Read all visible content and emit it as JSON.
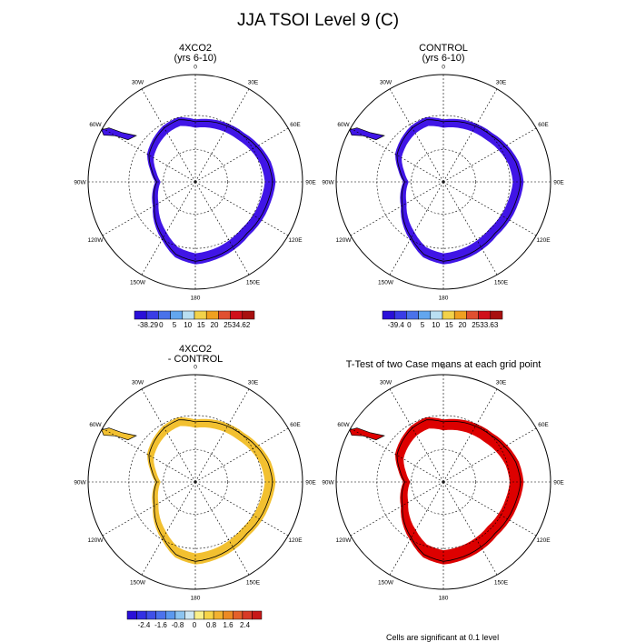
{
  "title": "JJA TSOI Level 9 (C)",
  "colors": {
    "frame": "#000000",
    "grid": "#000000",
    "coast": "#000000",
    "signif": "#dd0000"
  },
  "common": {
    "lon_labels": [
      "0",
      "30E",
      "60E",
      "90E",
      "120E",
      "150E",
      "180",
      "150W",
      "120W",
      "90W",
      "60W",
      "30W"
    ]
  },
  "panels": [
    {
      "id": "4xco2",
      "title_line1": "4XCO2",
      "title_line2": "(yrs 6-10)",
      "fill": "#4015e6",
      "colorbar": {
        "colors": [
          "#2a10d8",
          "#3a3ce6",
          "#4a72ea",
          "#62a6ee",
          "#b9dff2",
          "#f2d24a",
          "#f0a020",
          "#e05030",
          "#d0101a",
          "#a81010"
        ],
        "labels": [
          "-38.29",
          "0",
          "5",
          "10",
          "15",
          "20",
          "25",
          "34.62"
        ]
      }
    },
    {
      "id": "control",
      "title_line1": "CONTROL",
      "title_line2": "(yrs 6-10)",
      "fill": "#4015e6",
      "colorbar": {
        "colors": [
          "#2a10d8",
          "#3a3ce6",
          "#4a72ea",
          "#62a6ee",
          "#b9dff2",
          "#f2d24a",
          "#f0a020",
          "#e05030",
          "#d0101a",
          "#a81010"
        ],
        "labels": [
          "-39.4",
          "0",
          "5",
          "10",
          "15",
          "20",
          "25",
          "33.63"
        ]
      }
    },
    {
      "id": "diff",
      "title_line1": "4XCO2",
      "title_line2": "- CONTROL",
      "fill": "#f2c030",
      "colorbar": {
        "colors": [
          "#2a10d8",
          "#3330e4",
          "#4050e8",
          "#4c72ec",
          "#5b98ee",
          "#8cc4f0",
          "#cfe8f4",
          "#faf08a",
          "#f7d448",
          "#f2b230",
          "#ec8a24",
          "#e4602a",
          "#d83a26",
          "#c81818"
        ],
        "labels": [
          "-2.4",
          "-1.6",
          "-0.8",
          "0",
          "0.8",
          "1.6",
          "2.4"
        ]
      }
    },
    {
      "id": "ttest",
      "title_line1": "T-Test of two Case means at each grid point",
      "title_line2": "",
      "fill": "#dd0000"
    }
  ],
  "footnote": "Cells are significant at 0.1 level"
}
